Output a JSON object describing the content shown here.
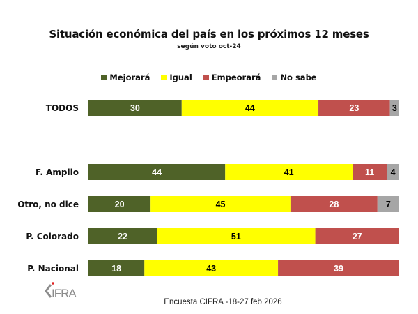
{
  "chart_data": {
    "type": "bar",
    "orientation": "horizontal",
    "stacked": true,
    "title": "Situación económica del país en los próximos 12 meses",
    "subtitle": "según voto oct-24",
    "xlabel": "",
    "ylabel": "",
    "xlim": [
      0,
      100
    ],
    "grid": false,
    "legend_position": "top",
    "categories": [
      "TODOS",
      "F. Amplio",
      "Otro, no dice",
      "P. Colorado",
      "P. Nacional"
    ],
    "series": [
      {
        "name": "Mejorará",
        "color": "#4f6228",
        "label_color": "#ffffff",
        "values": [
          30,
          44,
          20,
          22,
          18
        ]
      },
      {
        "name": "Igual",
        "color": "#ffff00",
        "label_color": "#000000",
        "values": [
          44,
          41,
          45,
          51,
          43
        ]
      },
      {
        "name": "Empeorará",
        "color": "#c0504d",
        "label_color": "#ffffff",
        "values": [
          23,
          11,
          28,
          27,
          39
        ]
      },
      {
        "name": "No sabe",
        "color": "#a6a6a6",
        "label_color": "#000000",
        "values": [
          3,
          4,
          7,
          null,
          null
        ]
      }
    ],
    "source": "Encuesta CIFRA -18-27 feb 2026"
  },
  "branding": {
    "logo_text": "CIFRA"
  }
}
